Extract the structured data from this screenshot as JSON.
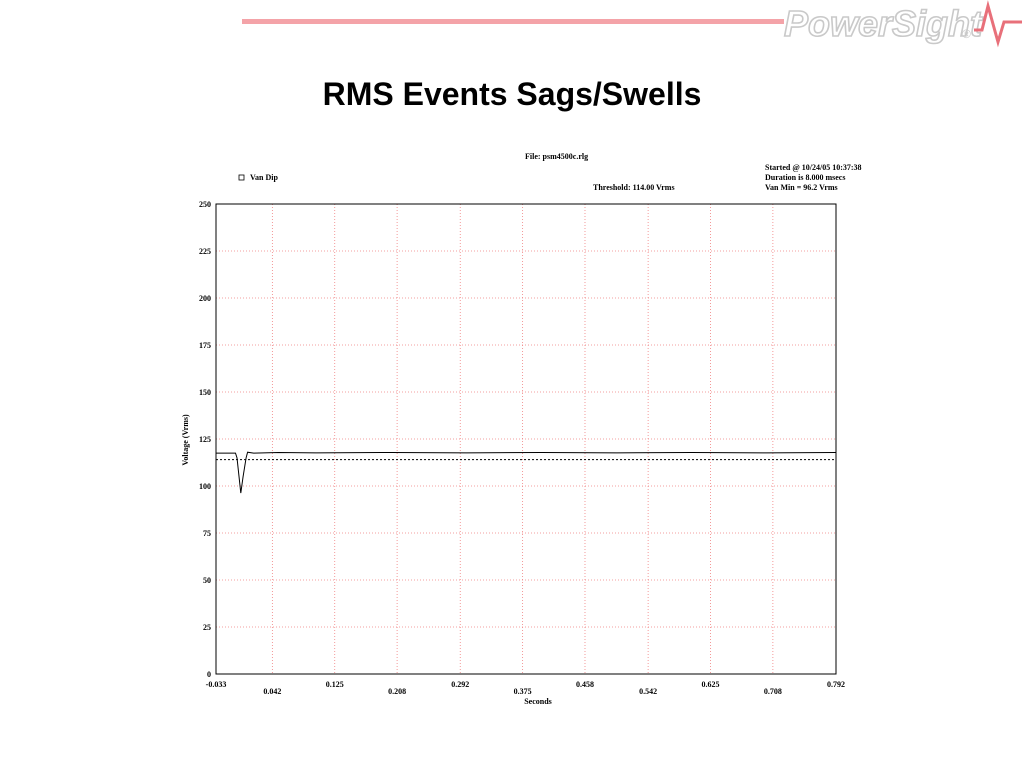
{
  "slide": {
    "title": "RMS Events Sags/Swells",
    "brand": "PowerSight",
    "brand_mark": "®"
  },
  "colors": {
    "header_line": "#f4a3a8",
    "logo": "#c9c9c9",
    "grid": "#f08080",
    "trace": "#000000"
  },
  "chart_data": {
    "type": "line",
    "file_label": "File: psm4500c.rlg",
    "legend": [
      {
        "name": "Van Dip",
        "marker": "square-outline"
      }
    ],
    "legend_position": "top-left",
    "info_lines": [
      "Started @ 10/24/05 10:37:38",
      "Duration is 8.000 msecs",
      "Van Min = 96.2 Vrms"
    ],
    "threshold_label": "Threshold: 114.00 Vrms",
    "threshold_value": 114.0,
    "xlabel": "Seconds",
    "ylabel": "Voltage (Vrms)",
    "xlim": [
      -0.033,
      0.792
    ],
    "ylim": [
      0,
      250
    ],
    "grid": true,
    "x_ticks": [
      "-0.033",
      "0.042",
      "0.125",
      "0.208",
      "0.292",
      "0.375",
      "0.458",
      "0.542",
      "0.625",
      "0.708",
      "0.792"
    ],
    "y_ticks": [
      "0",
      "25",
      "50",
      "75",
      "100",
      "125",
      "150",
      "175",
      "200",
      "225",
      "250"
    ],
    "series": [
      {
        "name": "Van Dip",
        "x": [
          -0.033,
          -0.007,
          -0.005,
          0.0,
          0.003,
          0.007,
          0.009,
          0.017,
          0.05,
          0.1,
          0.2,
          0.3,
          0.4,
          0.5,
          0.6,
          0.7,
          0.792
        ],
        "y": [
          117.5,
          117.5,
          115.0,
          96.2,
          105.0,
          115.0,
          118.0,
          117.5,
          117.8,
          117.6,
          117.8,
          117.6,
          117.8,
          117.6,
          117.8,
          117.6,
          117.8
        ]
      }
    ]
  }
}
